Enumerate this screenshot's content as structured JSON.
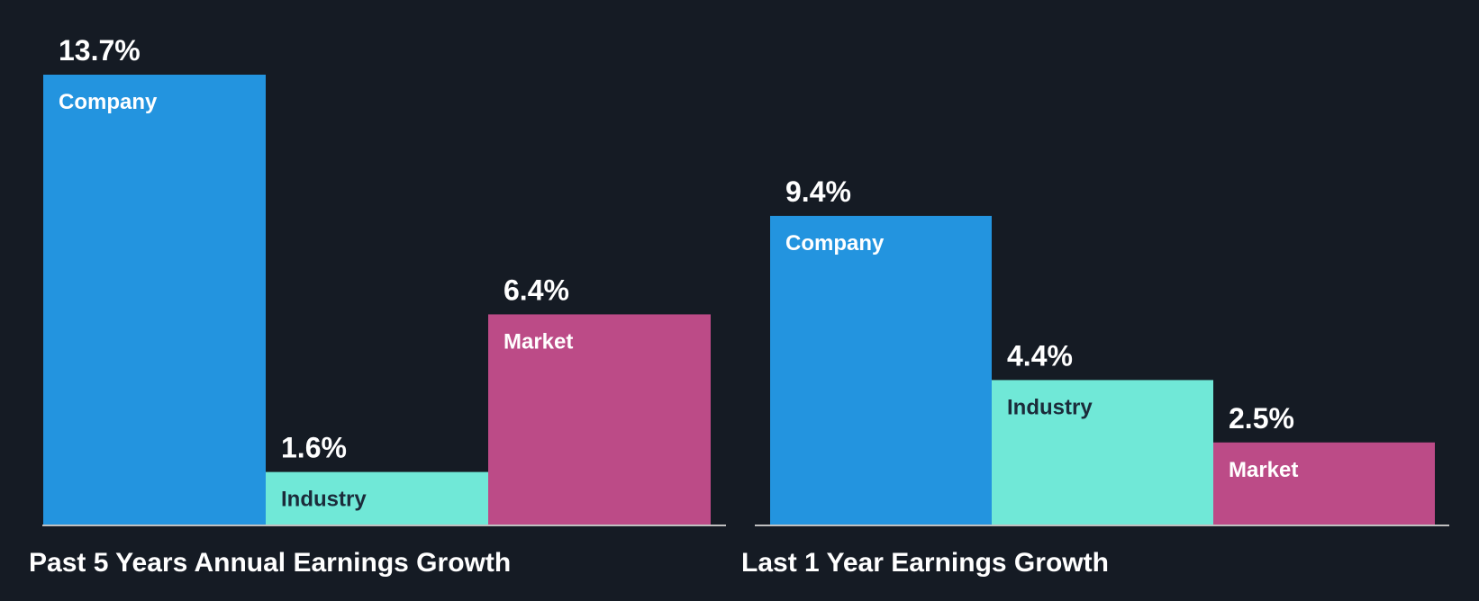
{
  "colors": {
    "background": "#151b24",
    "company": "#2394df",
    "industry": "#70e8d7",
    "market": "#bc4b87",
    "baseline": "#c0c0c0",
    "value_text": "#ffffff",
    "label_on_dark": "#ffffff",
    "label_on_light": "#1b2b3a"
  },
  "chart_data": [
    {
      "type": "bar",
      "title": "Past 5 Years Annual Earnings Growth",
      "categories": [
        "Company",
        "Industry",
        "Market"
      ],
      "values": [
        13.7,
        1.6,
        6.4
      ],
      "value_labels": [
        "13.7%",
        "1.6%",
        "6.4%"
      ],
      "unit": "%",
      "ylim": [
        0,
        13.7
      ],
      "grid": false,
      "legend": "none"
    },
    {
      "type": "bar",
      "title": "Last 1 Year Earnings Growth",
      "categories": [
        "Company",
        "Industry",
        "Market"
      ],
      "values": [
        9.4,
        4.4,
        2.5
      ],
      "value_labels": [
        "9.4%",
        "4.4%",
        "2.5%"
      ],
      "unit": "%",
      "ylim": [
        0,
        13.7
      ],
      "grid": false,
      "legend": "none"
    }
  ]
}
